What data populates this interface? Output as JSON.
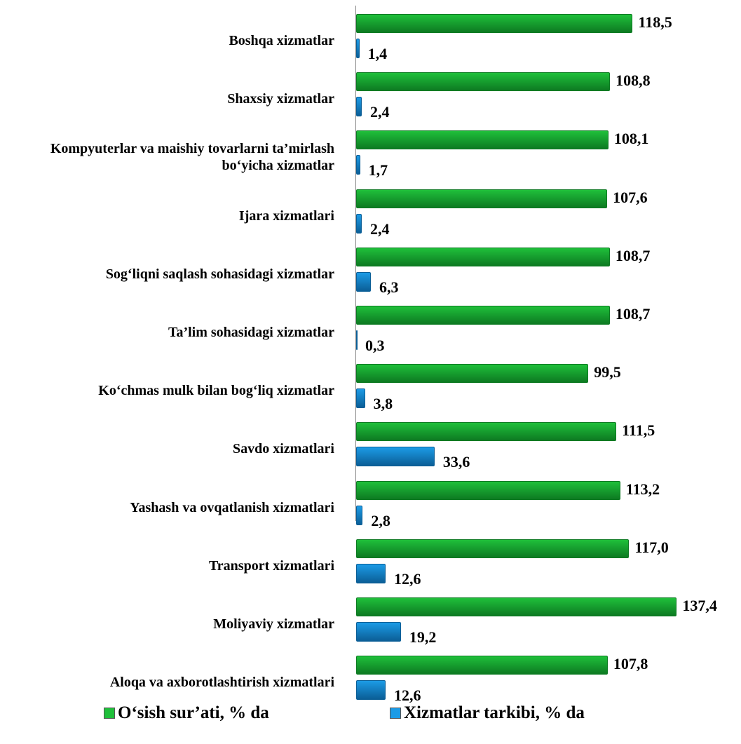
{
  "chart_data": {
    "type": "bar",
    "orientation": "horizontal",
    "categories": [
      "Boshqa xizmatlar",
      "Shaxsiy xizmatlar",
      "Kompyuterlar va maishiy tovarlarni ta’mirlash bo‘yicha xizmatlar",
      "Ijara xizmatlari",
      "Sog‘liqni saqlash sohasidagi xizmatlar",
      "Ta’lim sohasidagi xizmatlar",
      "Ko‘chmas mulk bilan bog‘liq xizmatlar",
      "Savdo xizmatlari",
      "Yashash va ovqatlanish xizmatlari",
      "Transport xizmatlari",
      "Moliyaviy  xizmatlar",
      "Aloqa va axborotlashtirish xizmatlari"
    ],
    "series": [
      {
        "name": "O‘sish sur’ati, % da",
        "color": "#1fbf3a",
        "values": [
          118.5,
          108.8,
          108.1,
          107.6,
          108.7,
          108.7,
          99.5,
          111.5,
          113.2,
          117.0,
          137.4,
          107.8
        ],
        "value_labels": [
          "118,5",
          "108,8",
          "108,1",
          "107,6",
          "108,7",
          "108,7",
          "99,5",
          "111,5",
          "113,2",
          "117,0",
          "137,4",
          "107,8"
        ]
      },
      {
        "name": "Xizmatlar tarkibi, % da",
        "color": "#1c9be6",
        "values": [
          1.4,
          2.4,
          1.7,
          2.4,
          6.3,
          0.3,
          3.8,
          33.6,
          2.8,
          12.6,
          19.2,
          12.6
        ],
        "value_labels": [
          "1,4",
          "2,4",
          "1,7",
          "2,4",
          "6,3",
          "0,3",
          "3,8",
          "33,6",
          "2,8",
          "12,6",
          "19,2",
          "12,6"
        ]
      }
    ],
    "xlim": [
      0,
      140
    ],
    "legend": "bottom"
  }
}
